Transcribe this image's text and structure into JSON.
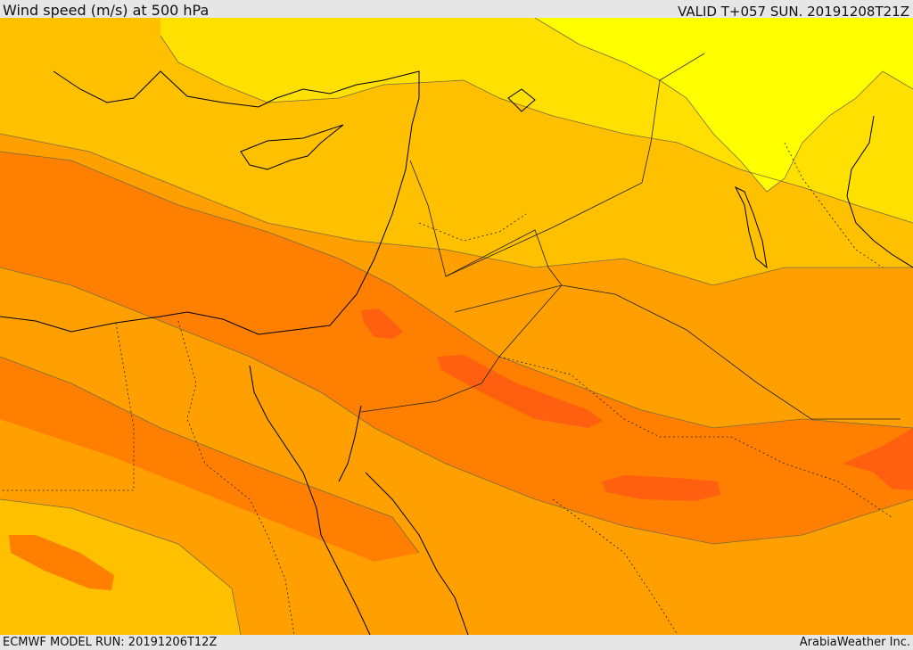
{
  "header": {
    "title": "Wind speed (m/s) at 500 hPa",
    "valid_time": "VALID T+057 SUN. 20191208T21Z"
  },
  "footer": {
    "model_run": "ECMWF MODEL RUN: 20191206T12Z",
    "credit": "ArabiaWeather Inc."
  },
  "colors": {
    "band_1": "#ffff00",
    "band_2": "#ffe000",
    "band_3": "#ffc000",
    "band_4": "#ffa000",
    "band_5": "#ff8000",
    "band_6": "#ff6010",
    "contour_line": "#7a6a40",
    "coastline": "#000000",
    "border": "#222222"
  }
}
